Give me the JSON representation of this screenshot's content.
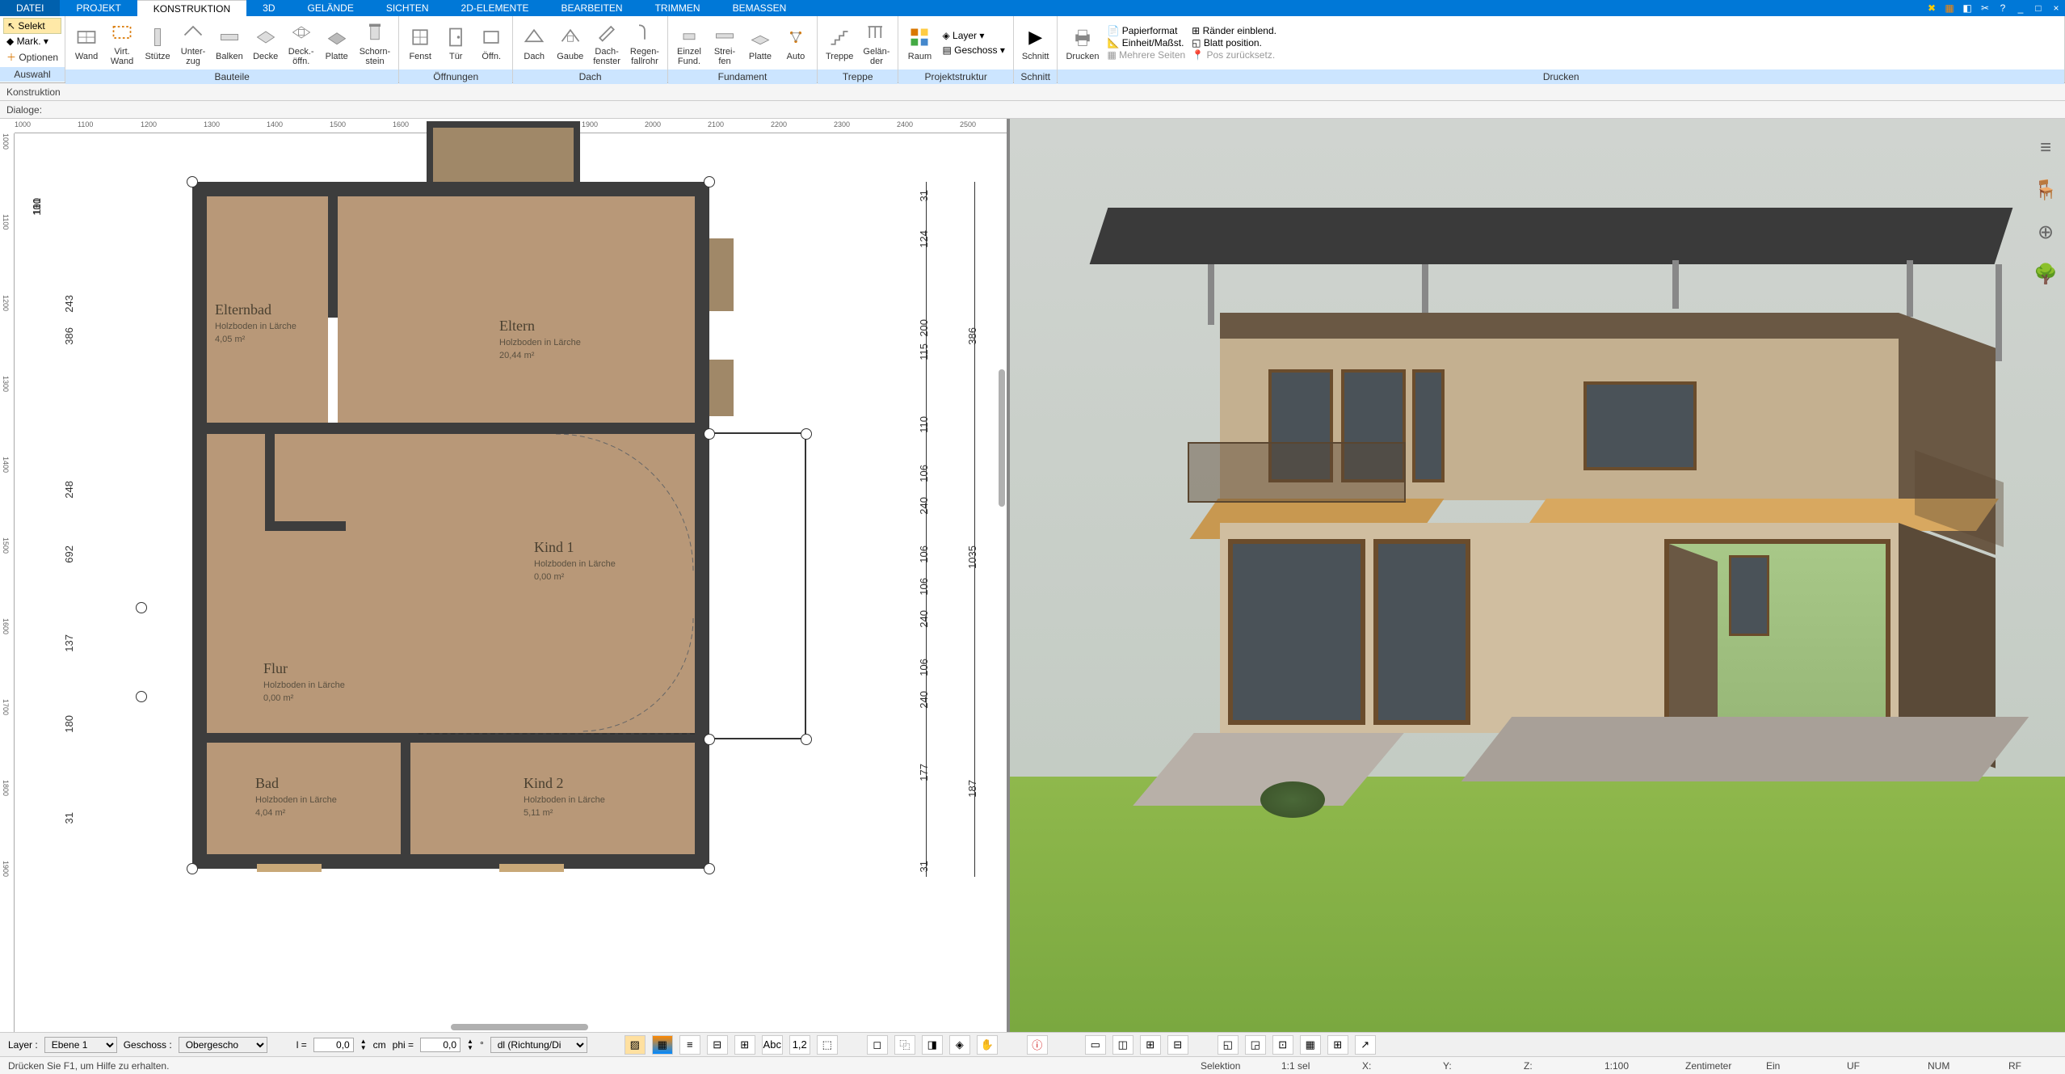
{
  "menubar": {
    "items": [
      "DATEI",
      "PROJEKT",
      "KONSTRUKTION",
      "3D",
      "GELÄNDE",
      "SICHTEN",
      "2D-ELEMENTE",
      "BEARBEITEN",
      "TRIMMEN",
      "BEMASSEN"
    ],
    "active_index": 2
  },
  "ribbon": {
    "auswahl": {
      "label": "Auswahl",
      "selekt": "Selekt",
      "mark": "Mark.",
      "optionen": "Optionen"
    },
    "bauteile": {
      "label": "Bauteile",
      "items": [
        {
          "label": "Wand"
        },
        {
          "label": "Virt.\nWand"
        },
        {
          "label": "Stütze"
        },
        {
          "label": "Unter-\nzug"
        },
        {
          "label": "Balken"
        },
        {
          "label": "Decke"
        },
        {
          "label": "Deck.-\nöffn."
        },
        {
          "label": "Platte"
        },
        {
          "label": "Schorn-\nstein"
        }
      ]
    },
    "oeffnungen": {
      "label": "Öffnungen",
      "items": [
        {
          "label": "Fenst"
        },
        {
          "label": "Tür"
        },
        {
          "label": "Öffn."
        }
      ]
    },
    "dach": {
      "label": "Dach",
      "items": [
        {
          "label": "Dach"
        },
        {
          "label": "Gaube"
        },
        {
          "label": "Dach-\nfenster"
        },
        {
          "label": "Regen-\nfallrohr"
        }
      ]
    },
    "fundament": {
      "label": "Fundament",
      "items": [
        {
          "label": "Einzel\nFund."
        },
        {
          "label": "Strei-\nfen"
        },
        {
          "label": "Platte"
        },
        {
          "label": "Auto"
        }
      ]
    },
    "treppe": {
      "label": "Treppe",
      "items": [
        {
          "label": "Treppe"
        },
        {
          "label": "Gelän-\nder"
        }
      ]
    },
    "projektstruktur": {
      "label": "Projektstruktur",
      "raum": "Raum",
      "layer": "Layer",
      "geschoss": "Geschoss"
    },
    "schnitt": {
      "label": "Schnitt",
      "btn": "Schnitt"
    },
    "drucken": {
      "label": "Drucken",
      "btn": "Drucken",
      "opts": [
        "Papierformat",
        "Einheit/Maßst.",
        "Mehrere Seiten",
        "Ränder einblend.",
        "Blatt position.",
        "Pos zurücksetz."
      ]
    }
  },
  "subbar1": {
    "text": "Konstruktion"
  },
  "subbar2": {
    "text": "Dialoge:"
  },
  "ruler_h": [
    1000,
    1100,
    1200,
    1300,
    1400,
    1500,
    1600,
    1700,
    1800,
    1900,
    2000,
    2100,
    2200,
    2300,
    2400,
    2500
  ],
  "ruler_v": [
    1000,
    1100,
    1200,
    1300,
    1400,
    1500,
    1600,
    1700,
    1800,
    1900
  ],
  "rooms": {
    "elternbad": {
      "name": "Elternbad",
      "desc": "Holzboden in Lärche",
      "area": "4,05 m²"
    },
    "eltern": {
      "name": "Eltern",
      "desc": "Holzboden in Lärche",
      "area": "20,44 m²"
    },
    "kind1": {
      "name": "Kind 1",
      "desc": "Holzboden in Lärche",
      "area": "0,00 m²"
    },
    "flur": {
      "name": "Flur",
      "desc": "Holzboden in Lärche",
      "area": "0,00 m²"
    },
    "bad": {
      "name": "Bad",
      "desc": "Holzboden in Lärche",
      "area": "4,04 m²"
    },
    "kind2": {
      "name": "Kind 2",
      "desc": "Holzboden in Lärche",
      "area": "5,11 m²"
    }
  },
  "dims_left": [
    "31",
    "100",
    "110",
    "386",
    "243",
    "248",
    "692",
    "137",
    "180",
    "31"
  ],
  "dims_right": [
    "31",
    "124",
    "200",
    "115",
    "386",
    "110",
    "106",
    "240",
    "1035",
    "106",
    "106",
    "240",
    "106",
    "240",
    "177",
    "187",
    "31"
  ],
  "bottombar": {
    "layer_label": "Layer :",
    "layer_value": "Ebene 1",
    "geschoss_label": "Geschoss :",
    "geschoss_value": "Obergescho",
    "l_label": "l =",
    "l_value": "0,0",
    "cm": "cm",
    "phi_label": "phi =",
    "phi_value": "0,0",
    "deg": "°",
    "mode": "dl (Richtung/Di"
  },
  "statusbar": {
    "help": "Drücken Sie F1, um Hilfe zu erhalten.",
    "selektion": "Selektion",
    "sel": "1:1 sel",
    "x": "X:",
    "y": "Y:",
    "z": "Z:",
    "scale": "1:100",
    "unit": "Zentimeter",
    "ein": "Ein",
    "uf": "UF",
    "num": "NUM",
    "rf": "RF"
  },
  "colors": {
    "menu_blue": "#0078d7",
    "wood": "#b89878",
    "wall": "#3d3d3d",
    "grass": "#8fb84c",
    "sky": "#d0d4d0",
    "roof": "#3a3a3a",
    "wall3d_light": "#c4b090",
    "wall3d_dark": "#6a5844",
    "window3d": "#4a5258"
  }
}
